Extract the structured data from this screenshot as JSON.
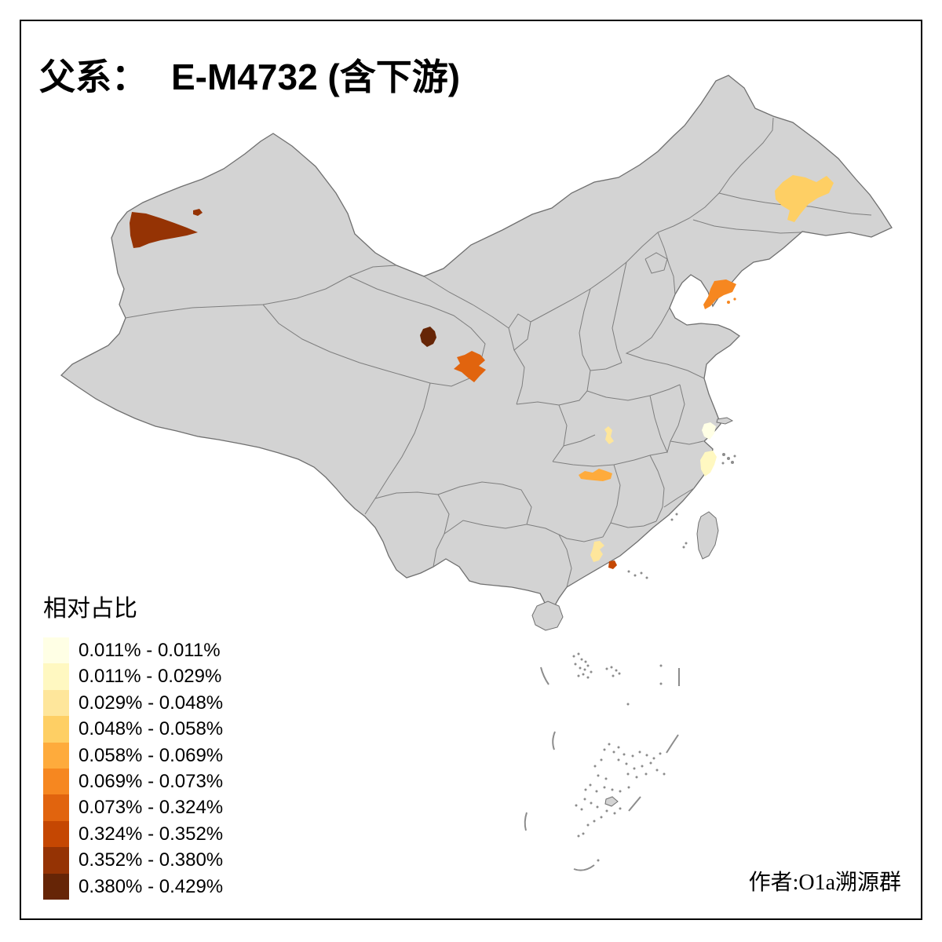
{
  "frame": {
    "background": "#ffffff",
    "border_color": "#000000"
  },
  "title": {
    "prefix": "父系：",
    "main": "E-M4732 (含下游)"
  },
  "legend": {
    "title": "相对占比",
    "classes": [
      {
        "label": "0.011% - 0.011%",
        "color": "#FFFFE5"
      },
      {
        "label": "0.011% - 0.029%",
        "color": "#FFF8C1"
      },
      {
        "label": "0.029% - 0.048%",
        "color": "#FEE69B"
      },
      {
        "label": "0.048% - 0.058%",
        "color": "#FECF64"
      },
      {
        "label": "0.058% - 0.069%",
        "color": "#FEAB3C"
      },
      {
        "label": "0.069% - 0.073%",
        "color": "#F68720"
      },
      {
        "label": "0.073% - 0.324%",
        "color": "#E1640E"
      },
      {
        "label": "0.324% - 0.352%",
        "color": "#C54702"
      },
      {
        "label": "0.352% - 0.380%",
        "color": "#953304"
      },
      {
        "label": "0.380% - 0.429%",
        "color": "#662506"
      }
    ]
  },
  "attribution": "作者:O1a溯源群",
  "map": {
    "land_fill": "#d3d3d3",
    "boundary_color": "#7e7e7e",
    "outline_color": "#6f6f6f",
    "sea_color": "#ffffff",
    "islet_color": "#8c8c8c",
    "dash_line_color": "#8c8c8c"
  },
  "chart_data": {
    "type": "choropleth",
    "title": "父系： E-M4732 (含下游)",
    "legend_title": "相对占比",
    "legend_position": "bottom-left",
    "palette": "YlOrBr (light yellow to dark brown), 10 classes",
    "base_map": "China with province boundaries, gray land, white sea",
    "regions": [
      {
        "location": "heilongjiang-central (Harbin area)",
        "class": 4,
        "value_range": "0.048% - 0.058%",
        "color": "#FECF64"
      },
      {
        "location": "xinjiang-west (Kashgar area)",
        "class": 9,
        "value_range": "0.352% - 0.380%",
        "color": "#953304"
      },
      {
        "location": "xinjiang-west small enclave",
        "class": 9,
        "value_range": "0.352% - 0.380%",
        "color": "#953304"
      },
      {
        "location": "qinghai-east (Xining area)",
        "class": 10,
        "value_range": "0.380% - 0.429%",
        "color": "#662506"
      },
      {
        "location": "gansu-central (Lanzhou area)",
        "class": 7,
        "value_range": "0.073% - 0.324%",
        "color": "#E1640E"
      },
      {
        "location": "liaoning-south (Dalian peninsula)",
        "class": 6,
        "value_range": "0.069% - 0.073%",
        "color": "#F68720"
      },
      {
        "location": "hubei-central small region",
        "class": 3,
        "value_range": "0.029% - 0.048%",
        "color": "#FEE69B"
      },
      {
        "location": "hunan-central elongated region",
        "class": 5,
        "value_range": "0.058% - 0.069%",
        "color": "#FEAB3C"
      },
      {
        "location": "zhejiang-north coastal",
        "class": 1,
        "value_range": "0.011% - 0.011%",
        "color": "#FFFFE5"
      },
      {
        "location": "zhejiang-south coastal (Ningbo)",
        "class": 2,
        "value_range": "0.011% - 0.029%",
        "color": "#FFF8C1"
      },
      {
        "location": "guangdong-pearl-river west",
        "class": 3,
        "value_range": "0.029% - 0.048%",
        "color": "#FEE69B"
      },
      {
        "location": "guangdong small dark region",
        "class": 8,
        "value_range": "0.324% - 0.352%",
        "color": "#C54702"
      }
    ]
  }
}
